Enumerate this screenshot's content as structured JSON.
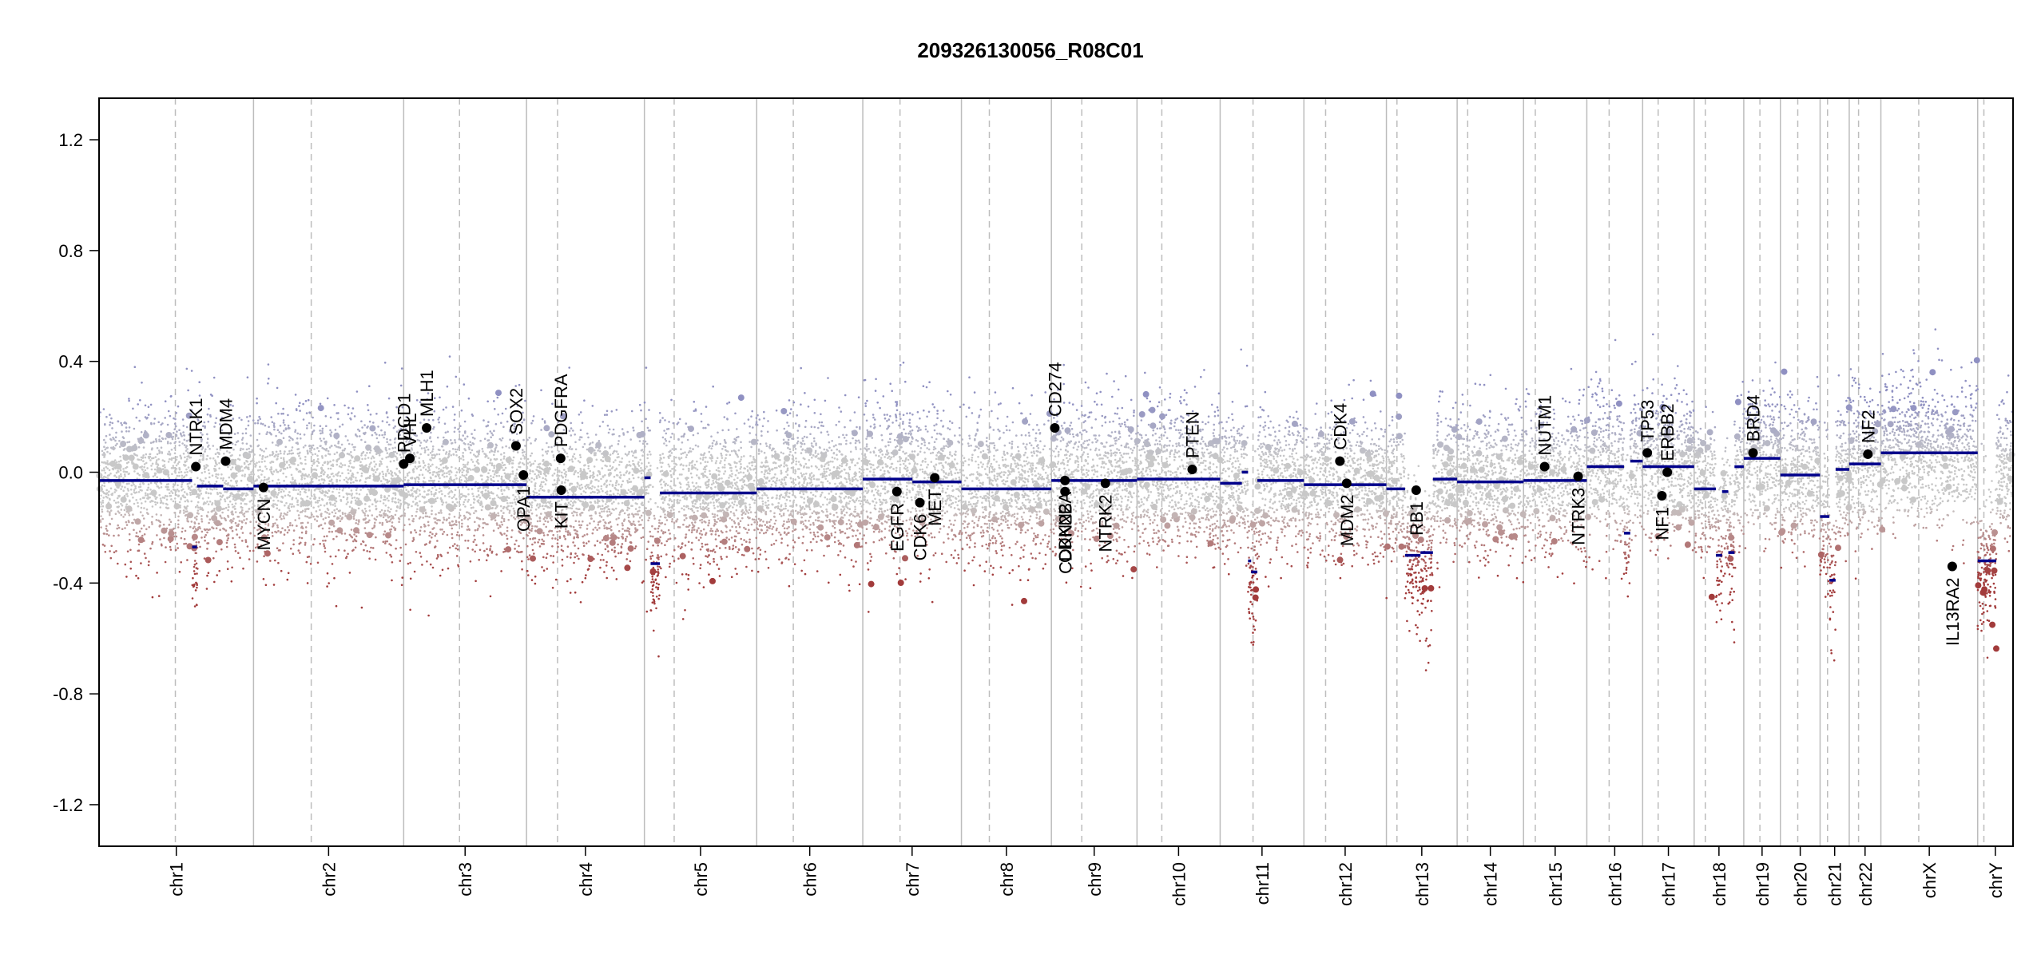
{
  "chart_data": {
    "type": "scatter",
    "title": "209326130056_R08C01",
    "xlabel": "",
    "ylabel": "",
    "ylim": [
      -1.35,
      1.35
    ],
    "yticks": [
      1.2,
      0.8,
      0.4,
      0.0,
      -0.4,
      -0.8,
      -1.2
    ],
    "ytick_labels": [
      "1.2",
      "0.8",
      "0.4",
      "0.0",
      "-0.4",
      "-0.8",
      "-1.2"
    ],
    "grid": false,
    "colors": {
      "segment": "#00008b",
      "gain_points": "#8f90c2",
      "loss_points": "#a23b3b",
      "neutral_points": "#c8c8c8",
      "gene_marker": "#000000",
      "chrom_boundary": "#bcbcbc",
      "centromere": "#bdbdbd"
    },
    "chromosomes": [
      {
        "name": "chr1",
        "length_mb": 249,
        "centromere_mb": 123
      },
      {
        "name": "chr2",
        "length_mb": 242,
        "centromere_mb": 93
      },
      {
        "name": "chr3",
        "length_mb": 198,
        "centromere_mb": 90
      },
      {
        "name": "chr4",
        "length_mb": 190,
        "centromere_mb": 50
      },
      {
        "name": "chr5",
        "length_mb": 181,
        "centromere_mb": 48
      },
      {
        "name": "chr6",
        "length_mb": 171,
        "centromere_mb": 59
      },
      {
        "name": "chr7",
        "length_mb": 159,
        "centromere_mb": 60
      },
      {
        "name": "chr8",
        "length_mb": 145,
        "centromere_mb": 45
      },
      {
        "name": "chr9",
        "length_mb": 138,
        "centromere_mb": 49
      },
      {
        "name": "chr10",
        "length_mb": 134,
        "centromere_mb": 40
      },
      {
        "name": "chr11",
        "length_mb": 135,
        "centromere_mb": 53
      },
      {
        "name": "chr12",
        "length_mb": 133,
        "centromere_mb": 35
      },
      {
        "name": "chr13",
        "length_mb": 114,
        "centromere_mb": 17
      },
      {
        "name": "chr14",
        "length_mb": 107,
        "centromere_mb": 17
      },
      {
        "name": "chr15",
        "length_mb": 102,
        "centromere_mb": 19
      },
      {
        "name": "chr16",
        "length_mb": 90,
        "centromere_mb": 36
      },
      {
        "name": "chr17",
        "length_mb": 83,
        "centromere_mb": 25
      },
      {
        "name": "chr18",
        "length_mb": 80,
        "centromere_mb": 18
      },
      {
        "name": "chr19",
        "length_mb": 59,
        "centromere_mb": 26
      },
      {
        "name": "chr20",
        "length_mb": 64,
        "centromere_mb": 28
      },
      {
        "name": "chr21",
        "length_mb": 47,
        "centromere_mb": 12
      },
      {
        "name": "chr22",
        "length_mb": 51,
        "centromere_mb": 15
      },
      {
        "name": "chrX",
        "length_mb": 156,
        "centromere_mb": 61
      },
      {
        "name": "chrY",
        "length_mb": 57,
        "centromere_mb": 10
      }
    ],
    "segments": [
      {
        "chr": "chr1",
        "start_mb": 0,
        "end_mb": 150,
        "value": -0.03
      },
      {
        "chr": "chr1",
        "start_mb": 150,
        "end_mb": 158,
        "value": -0.27
      },
      {
        "chr": "chr1",
        "start_mb": 158,
        "end_mb": 200,
        "value": -0.05
      },
      {
        "chr": "chr1",
        "start_mb": 200,
        "end_mb": 249,
        "value": -0.06
      },
      {
        "chr": "chr2",
        "start_mb": 0,
        "end_mb": 242,
        "value": -0.05
      },
      {
        "chr": "chr3",
        "start_mb": 0,
        "end_mb": 198,
        "value": -0.045
      },
      {
        "chr": "chr4",
        "start_mb": 0,
        "end_mb": 190,
        "value": -0.09
      },
      {
        "chr": "chr5",
        "start_mb": 0,
        "end_mb": 10,
        "value": -0.02
      },
      {
        "chr": "chr5",
        "start_mb": 10,
        "end_mb": 25,
        "value": -0.33
      },
      {
        "chr": "chr5",
        "start_mb": 25,
        "end_mb": 181,
        "value": -0.075
      },
      {
        "chr": "chr6",
        "start_mb": 0,
        "end_mb": 171,
        "value": -0.06
      },
      {
        "chr": "chr7",
        "start_mb": 0,
        "end_mb": 80,
        "value": -0.025
      },
      {
        "chr": "chr7",
        "start_mb": 80,
        "end_mb": 159,
        "value": -0.035
      },
      {
        "chr": "chr8",
        "start_mb": 0,
        "end_mb": 145,
        "value": -0.06
      },
      {
        "chr": "chr9",
        "start_mb": 0,
        "end_mb": 138,
        "value": -0.03
      },
      {
        "chr": "chr10",
        "start_mb": 0,
        "end_mb": 134,
        "value": -0.025
      },
      {
        "chr": "chr11",
        "start_mb": 0,
        "end_mb": 35,
        "value": -0.04
      },
      {
        "chr": "chr11",
        "start_mb": 35,
        "end_mb": 45,
        "value": 0.0
      },
      {
        "chr": "chr11",
        "start_mb": 45,
        "end_mb": 50,
        "value": -0.32
      },
      {
        "chr": "chr11",
        "start_mb": 50,
        "end_mb": 60,
        "value": -0.36
      },
      {
        "chr": "chr11",
        "start_mb": 60,
        "end_mb": 135,
        "value": -0.03
      },
      {
        "chr": "chr12",
        "start_mb": 0,
        "end_mb": 133,
        "value": -0.045
      },
      {
        "chr": "chr13",
        "start_mb": 0,
        "end_mb": 30,
        "value": -0.06
      },
      {
        "chr": "chr13",
        "start_mb": 30,
        "end_mb": 55,
        "value": -0.3
      },
      {
        "chr": "chr13",
        "start_mb": 55,
        "end_mb": 75,
        "value": -0.29
      },
      {
        "chr": "chr13",
        "start_mb": 75,
        "end_mb": 114,
        "value": -0.025
      },
      {
        "chr": "chr14",
        "start_mb": 0,
        "end_mb": 107,
        "value": -0.035
      },
      {
        "chr": "chr15",
        "start_mb": 0,
        "end_mb": 102,
        "value": -0.03
      },
      {
        "chr": "chr16",
        "start_mb": 0,
        "end_mb": 60,
        "value": 0.02
      },
      {
        "chr": "chr16",
        "start_mb": 60,
        "end_mb": 70,
        "value": -0.22
      },
      {
        "chr": "chr16",
        "start_mb": 70,
        "end_mb": 90,
        "value": 0.04
      },
      {
        "chr": "chr17",
        "start_mb": 0,
        "end_mb": 83,
        "value": 0.02
      },
      {
        "chr": "chr18",
        "start_mb": 0,
        "end_mb": 35,
        "value": -0.06
      },
      {
        "chr": "chr18",
        "start_mb": 35,
        "end_mb": 45,
        "value": -0.3
      },
      {
        "chr": "chr18",
        "start_mb": 45,
        "end_mb": 55,
        "value": -0.07
      },
      {
        "chr": "chr18",
        "start_mb": 55,
        "end_mb": 65,
        "value": -0.29
      },
      {
        "chr": "chr18",
        "start_mb": 65,
        "end_mb": 80,
        "value": 0.02
      },
      {
        "chr": "chr19",
        "start_mb": 0,
        "end_mb": 59,
        "value": 0.05
      },
      {
        "chr": "chr20",
        "start_mb": 0,
        "end_mb": 64,
        "value": -0.01
      },
      {
        "chr": "chr21",
        "start_mb": 0,
        "end_mb": 15,
        "value": -0.16
      },
      {
        "chr": "chr21",
        "start_mb": 15,
        "end_mb": 25,
        "value": -0.39
      },
      {
        "chr": "chr21",
        "start_mb": 25,
        "end_mb": 47,
        "value": 0.01
      },
      {
        "chr": "chr22",
        "start_mb": 0,
        "end_mb": 51,
        "value": 0.03
      },
      {
        "chr": "chrX",
        "start_mb": 0,
        "end_mb": 156,
        "value": 0.07
      },
      {
        "chr": "chrY",
        "start_mb": 0,
        "end_mb": 30,
        "value": -0.32
      }
    ],
    "genes": [
      {
        "name": "NTRK1",
        "chr": "chr1",
        "pos_mb": 156,
        "value": 0.02,
        "label_side": "above"
      },
      {
        "name": "MDM4",
        "chr": "chr1",
        "pos_mb": 204,
        "value": 0.04,
        "label_side": "above"
      },
      {
        "name": "MYCN",
        "chr": "chr2",
        "pos_mb": 16,
        "value": -0.055,
        "label_side": "below"
      },
      {
        "name": "PDCD1",
        "chr": "chr2",
        "pos_mb": 242,
        "value": 0.03,
        "label_side": "above"
      },
      {
        "name": "VHL",
        "chr": "chr3",
        "pos_mb": 10,
        "value": 0.05,
        "label_side": "above"
      },
      {
        "name": "MLH1",
        "chr": "chr3",
        "pos_mb": 37,
        "value": 0.16,
        "label_side": "above"
      },
      {
        "name": "SOX2",
        "chr": "chr3",
        "pos_mb": 181,
        "value": 0.095,
        "label_side": "above"
      },
      {
        "name": "OPA1",
        "chr": "chr3",
        "pos_mb": 193,
        "value": -0.01,
        "label_side": "below"
      },
      {
        "name": "PDGFRA",
        "chr": "chr4",
        "pos_mb": 55,
        "value": 0.05,
        "label_side": "above"
      },
      {
        "name": "KIT",
        "chr": "chr4",
        "pos_mb": 56,
        "value": -0.065,
        "label_side": "below"
      },
      {
        "name": "EGFR",
        "chr": "chr7",
        "pos_mb": 55,
        "value": -0.07,
        "label_side": "below"
      },
      {
        "name": "CDK6",
        "chr": "chr7",
        "pos_mb": 92,
        "value": -0.11,
        "label_side": "below"
      },
      {
        "name": "MET",
        "chr": "chr7",
        "pos_mb": 116,
        "value": -0.02,
        "label_side": "below"
      },
      {
        "name": "CD274",
        "chr": "chr9",
        "pos_mb": 5.5,
        "value": 0.16,
        "label_side": "above"
      },
      {
        "name": "CDKN2A",
        "chr": "chr9",
        "pos_mb": 21.9,
        "value": -0.03,
        "label_side": "below"
      },
      {
        "name": "CDKN2B",
        "chr": "chr9",
        "pos_mb": 22.0,
        "value": -0.07,
        "label_side": "below"
      },
      {
        "name": "NTRK2",
        "chr": "chr9",
        "pos_mb": 87,
        "value": -0.04,
        "label_side": "below"
      },
      {
        "name": "PTEN",
        "chr": "chr10",
        "pos_mb": 89,
        "value": 0.01,
        "label_side": "above"
      },
      {
        "name": "CDK4",
        "chr": "chr12",
        "pos_mb": 58,
        "value": 0.04,
        "label_side": "above"
      },
      {
        "name": "MDM2",
        "chr": "chr12",
        "pos_mb": 69,
        "value": -0.04,
        "label_side": "below"
      },
      {
        "name": "RB1",
        "chr": "chr13",
        "pos_mb": 48,
        "value": -0.065,
        "label_side": "below"
      },
      {
        "name": "NUTM1",
        "chr": "chr15",
        "pos_mb": 34,
        "value": 0.02,
        "label_side": "above"
      },
      {
        "name": "NTRK3",
        "chr": "chr15",
        "pos_mb": 88,
        "value": -0.015,
        "label_side": "below"
      },
      {
        "name": "TP53",
        "chr": "chr17",
        "pos_mb": 7.5,
        "value": 0.07,
        "label_side": "above"
      },
      {
        "name": "ERBB2",
        "chr": "chr17",
        "pos_mb": 39.7,
        "value": 0.0,
        "label_side": "above"
      },
      {
        "name": "NF1",
        "chr": "chr17",
        "pos_mb": 31,
        "value": -0.085,
        "label_side": "below"
      },
      {
        "name": "BRD4",
        "chr": "chr19",
        "pos_mb": 15,
        "value": 0.07,
        "label_side": "above"
      },
      {
        "name": "NF2",
        "chr": "chr22",
        "pos_mb": 30,
        "value": 0.065,
        "label_side": "above"
      },
      {
        "name": "IL13RA2",
        "chr": "chrX",
        "pos_mb": 115,
        "value": -0.34,
        "label_side": "below"
      }
    ]
  }
}
